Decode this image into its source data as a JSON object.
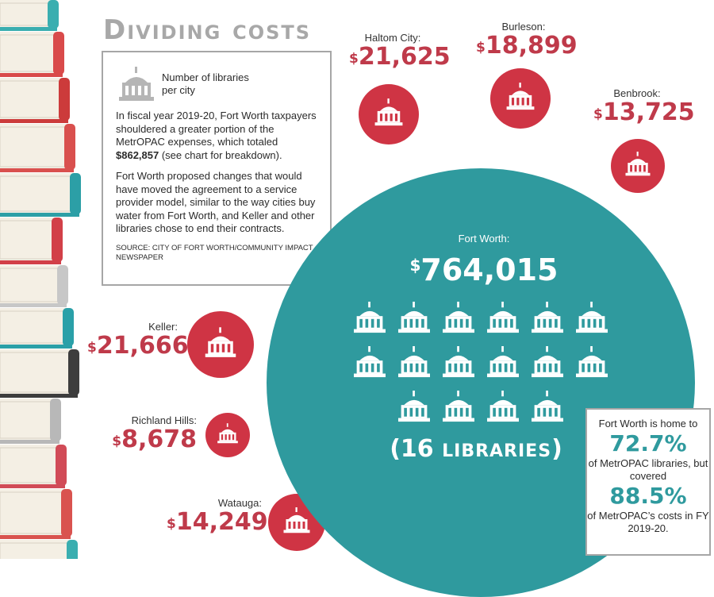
{
  "title": "Dividing costs",
  "legend": {
    "label": "Number of libraries per city",
    "icon": "library-icon"
  },
  "intro": {
    "p1_before": "In fiscal year 2019-20, Fort Worth taxpayers shouldered a greater portion of the MetrOPAC expenses, which totaled ",
    "p1_bold": "$862,857",
    "p1_after": " (see chart for breakdown).",
    "p2": "Fort Worth proposed changes that would have moved the agreement to a service provider model, similar to the way cities buy water from Fort Worth, and Keller and other libraries chose to end their contracts.",
    "source": "SOURCE: CITY OF FORT WORTH/COMMUNITY IMPACT NEWSPAPER"
  },
  "colors": {
    "red": "#cf3444",
    "amount_red": "#bf3a4a",
    "teal": "#2f9a9e",
    "gray": "#a6a6a6"
  },
  "chart_data": {
    "type": "bubble",
    "currency_symbol": "$",
    "series": [
      {
        "city": "Haltom City",
        "amount": "21,625",
        "value": 21625,
        "libraries": 1
      },
      {
        "city": "Burleson",
        "amount": "18,899",
        "value": 18899,
        "libraries": 1
      },
      {
        "city": "Benbrook",
        "amount": "13,725",
        "value": 13725,
        "libraries": 1
      },
      {
        "city": "Keller",
        "amount": "21,666",
        "value": 21666,
        "libraries": 1
      },
      {
        "city": "Richland Hills",
        "amount": "8,678",
        "value": 8678,
        "libraries": 1
      },
      {
        "city": "Watauga",
        "amount": "14,249",
        "value": 14249,
        "libraries": 1
      },
      {
        "city": "Fort Worth",
        "amount": "764,015",
        "value": 764015,
        "libraries": 16
      }
    ]
  },
  "fort_worth": {
    "name": "Fort Worth:",
    "amount": "764,015",
    "libs_open": "(16 ",
    "libs_word": "LIBRARIES",
    "libs_close": ")"
  },
  "cities": {
    "haltom": {
      "name": "Haltom City:",
      "amount": "21,625"
    },
    "burleson": {
      "name": "Burleson:",
      "amount": "18,899"
    },
    "benbrook": {
      "name": "Benbrook:",
      "amount": "13,725"
    },
    "keller": {
      "name": "Keller:",
      "amount": "21,666"
    },
    "richland": {
      "name": "Richland Hills:",
      "amount": "8,678"
    },
    "watauga": {
      "name": "Watauga:",
      "amount": "14,249"
    }
  },
  "stats": {
    "line1": "Fort Worth is home to",
    "pct1": "72.7%",
    "line2": "of MetrOPAC libraries, but covered",
    "pct2": "88.5%",
    "line3": "of MetrOPAC’s costs in FY 2019-20."
  }
}
